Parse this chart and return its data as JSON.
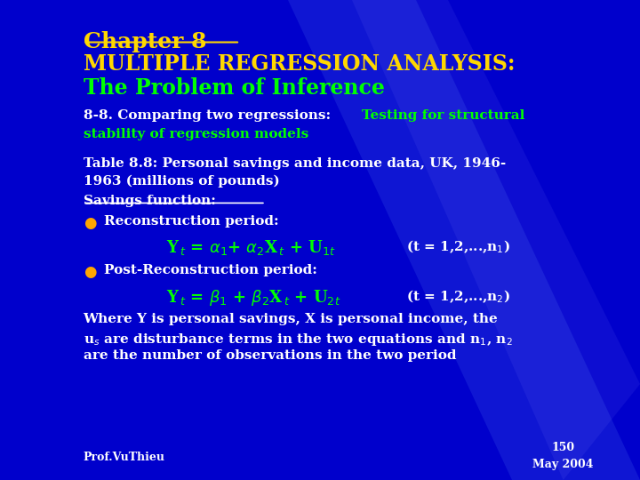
{
  "bg_color": "#0000cc",
  "title_line1": "Chapter 8",
  "title_line2": "MULTIPLE REGRESSION ANALYSIS:",
  "title_line3": "The Problem of Inference",
  "subtitle_white": "8-8. Comparing two regressions: ",
  "subtitle_green1": "Testing for structural",
  "subtitle_green2": "stability of regression models",
  "table_line1": "Table 8.8: Personal savings and income data, UK, 1946-",
  "table_line2": "1963 (millions of pounds)",
  "savings_label": "Savings function:",
  "bullet1_text": "Reconstruction period:",
  "bullet2_text": "Post-Reconstruction period:",
  "footer_left": "Prof.VuThieu",
  "footer_right_line1": "150",
  "footer_right_line2": "May 2004",
  "color_gold": "#ffd700",
  "color_green": "#00ff00",
  "color_white": "#ffffff",
  "color_orange": "#ffa500",
  "beam1_color": "#6699ff",
  "beam2_color": "#8888ff"
}
